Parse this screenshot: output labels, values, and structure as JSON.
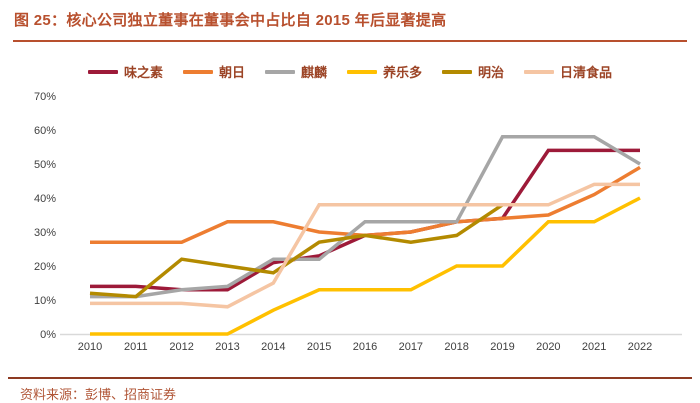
{
  "header": {
    "title": "图 25：核心公司独立董事在董事会中占比自 2015 年后显著提高"
  },
  "footer": {
    "source": "资料来源：彭博、招商证券"
  },
  "colors": {
    "title_accent": "#b8502e",
    "rule_bottom": "#8d3a22",
    "axis_line": "#d9d9d9",
    "tick_text": "#404040"
  },
  "chart_data": {
    "type": "line",
    "title": "核心公司独立董事在董事会中占比",
    "x": [
      2010,
      2011,
      2012,
      2013,
      2014,
      2015,
      2016,
      2017,
      2018,
      2019,
      2020,
      2021,
      2022
    ],
    "xticks": [
      "2010",
      "2011",
      "2012",
      "2013",
      "2014",
      "2015",
      "2016",
      "2017",
      "2018",
      "2019",
      "2020",
      "2021",
      "2022"
    ],
    "yticks": [
      "0%",
      "10%",
      "20%",
      "30%",
      "40%",
      "50%",
      "60%",
      "70%"
    ],
    "ylim": [
      0,
      70
    ],
    "y_unit": "%",
    "grid": false,
    "legend_position": "top",
    "series": [
      {
        "name": "味之素",
        "color": "#9d1a39",
        "values": [
          14,
          14,
          13,
          13,
          21,
          23,
          29,
          30,
          33,
          34,
          54,
          54,
          54
        ]
      },
      {
        "name": "朝日",
        "color": "#ED7D31",
        "values": [
          27,
          27,
          27,
          33,
          33,
          30,
          29,
          30,
          33,
          34,
          35,
          41,
          49
        ]
      },
      {
        "name": "麒麟",
        "color": "#A6A6A6",
        "values": [
          11,
          11,
          13,
          14,
          22,
          22,
          33,
          33,
          33,
          58,
          58,
          58,
          50
        ]
      },
      {
        "name": "养乐多",
        "color": "#FFC000",
        "values": [
          0,
          0,
          0,
          0,
          7,
          13,
          13,
          13,
          20,
          20,
          33,
          33,
          40
        ]
      },
      {
        "name": "明治",
        "color": "#B38A00",
        "values": [
          12,
          11,
          22,
          20,
          18,
          27,
          29,
          27,
          29,
          38,
          null,
          null,
          null
        ]
      },
      {
        "name": "日清食品",
        "color": "#F5C5A3",
        "values": [
          9,
          9,
          9,
          8,
          15,
          38,
          38,
          38,
          38,
          38,
          38,
          44,
          44
        ]
      }
    ]
  }
}
